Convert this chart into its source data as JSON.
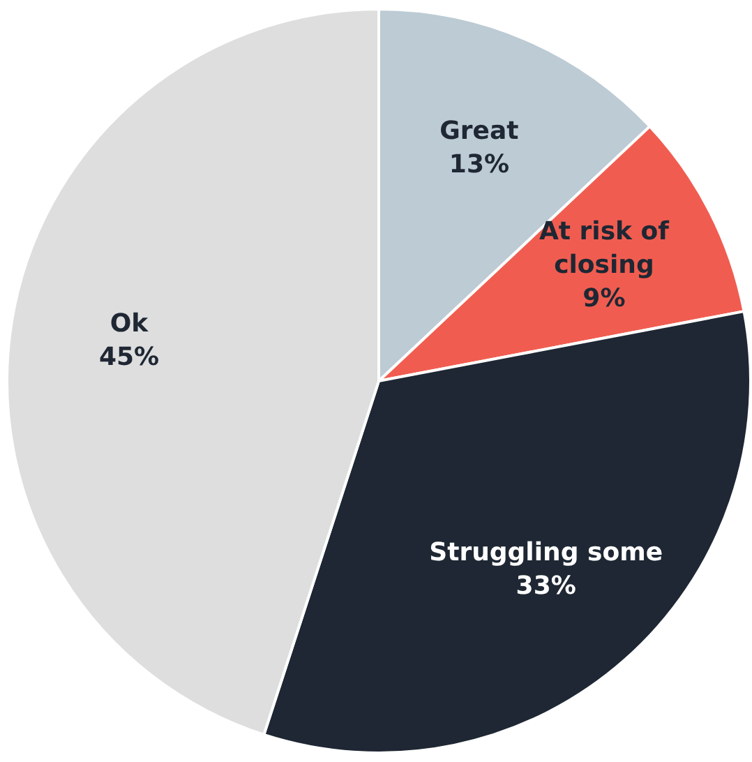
{
  "chart_data": {
    "type": "pie",
    "categories": [
      "Great",
      "At risk of closing",
      "Struggling some",
      "Ok"
    ],
    "values": [
      13,
      9,
      33,
      45
    ],
    "colors": [
      "#bccbd4",
      "#f05d50",
      "#1e2733",
      "#dedede"
    ],
    "value_labels": [
      "13%",
      "9%",
      "33%",
      "45%"
    ],
    "legend": false
  }
}
